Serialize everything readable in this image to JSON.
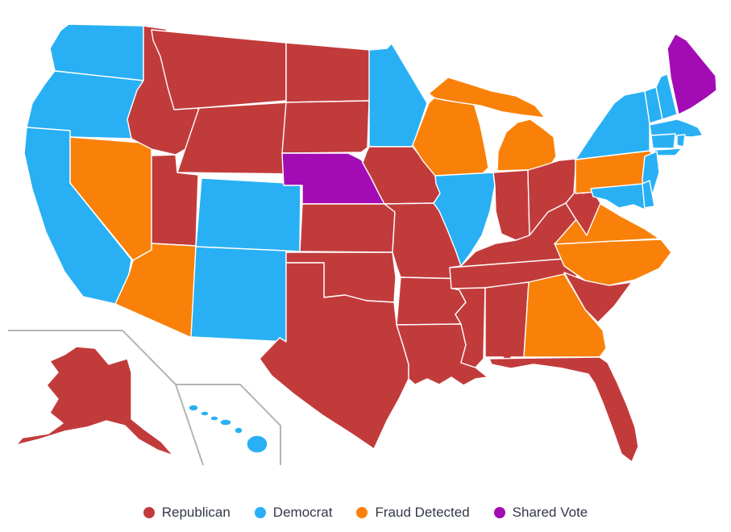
{
  "chart_data": {
    "type": "choropleth-map",
    "title": "",
    "legend_position": "bottom-center",
    "categories": [
      "Republican",
      "Democrat",
      "Fraud Detected",
      "Shared Vote"
    ],
    "category_colors": {
      "republican": "#c23b3b",
      "democrat": "#29b0f4",
      "fraud_detected": "#f98109",
      "shared_vote": "#a30cb5"
    },
    "states": [
      {
        "id": "WA",
        "name": "Washington",
        "status": "democrat"
      },
      {
        "id": "OR",
        "name": "Oregon",
        "status": "democrat"
      },
      {
        "id": "CA",
        "name": "California",
        "status": "democrat"
      },
      {
        "id": "NV",
        "name": "Nevada",
        "status": "fraud_detected"
      },
      {
        "id": "ID",
        "name": "Idaho",
        "status": "republican"
      },
      {
        "id": "MT",
        "name": "Montana",
        "status": "republican"
      },
      {
        "id": "WY",
        "name": "Wyoming",
        "status": "republican"
      },
      {
        "id": "UT",
        "name": "Utah",
        "status": "republican"
      },
      {
        "id": "CO",
        "name": "Colorado",
        "status": "democrat"
      },
      {
        "id": "AZ",
        "name": "Arizona",
        "status": "fraud_detected"
      },
      {
        "id": "NM",
        "name": "New Mexico",
        "status": "democrat"
      },
      {
        "id": "ND",
        "name": "North Dakota",
        "status": "republican"
      },
      {
        "id": "SD",
        "name": "South Dakota",
        "status": "republican"
      },
      {
        "id": "NE",
        "name": "Nebraska",
        "status": "shared_vote"
      },
      {
        "id": "KS",
        "name": "Kansas",
        "status": "republican"
      },
      {
        "id": "OK",
        "name": "Oklahoma",
        "status": "republican"
      },
      {
        "id": "TX",
        "name": "Texas",
        "status": "republican"
      },
      {
        "id": "MN",
        "name": "Minnesota",
        "status": "democrat"
      },
      {
        "id": "IA",
        "name": "Iowa",
        "status": "republican"
      },
      {
        "id": "MO",
        "name": "Missouri",
        "status": "republican"
      },
      {
        "id": "AR",
        "name": "Arkansas",
        "status": "republican"
      },
      {
        "id": "LA",
        "name": "Louisiana",
        "status": "republican"
      },
      {
        "id": "WI",
        "name": "Wisconsin",
        "status": "fraud_detected"
      },
      {
        "id": "IL",
        "name": "Illinois",
        "status": "democrat"
      },
      {
        "id": "MI",
        "name": "Michigan",
        "status": "fraud_detected"
      },
      {
        "id": "IN",
        "name": "Indiana",
        "status": "republican"
      },
      {
        "id": "OH",
        "name": "Ohio",
        "status": "republican"
      },
      {
        "id": "KY",
        "name": "Kentucky",
        "status": "republican"
      },
      {
        "id": "TN",
        "name": "Tennessee",
        "status": "republican"
      },
      {
        "id": "MS",
        "name": "Mississippi",
        "status": "republican"
      },
      {
        "id": "AL",
        "name": "Alabama",
        "status": "republican"
      },
      {
        "id": "GA",
        "name": "Georgia",
        "status": "fraud_detected"
      },
      {
        "id": "FL",
        "name": "Florida",
        "status": "republican"
      },
      {
        "id": "SC",
        "name": "South Carolina",
        "status": "republican"
      },
      {
        "id": "NC",
        "name": "North Carolina",
        "status": "fraud_detected"
      },
      {
        "id": "VA",
        "name": "Virginia",
        "status": "fraud_detected"
      },
      {
        "id": "WV",
        "name": "West Virginia",
        "status": "republican"
      },
      {
        "id": "PA",
        "name": "Pennsylvania",
        "status": "fraud_detected"
      },
      {
        "id": "NY",
        "name": "New York",
        "status": "democrat"
      },
      {
        "id": "NJ",
        "name": "New Jersey",
        "status": "democrat"
      },
      {
        "id": "DE",
        "name": "Delaware",
        "status": "democrat"
      },
      {
        "id": "MD",
        "name": "Maryland",
        "status": "democrat"
      },
      {
        "id": "VT",
        "name": "Vermont",
        "status": "democrat"
      },
      {
        "id": "NH",
        "name": "New Hampshire",
        "status": "democrat"
      },
      {
        "id": "ME",
        "name": "Maine",
        "status": "shared_vote"
      },
      {
        "id": "MA",
        "name": "Massachusetts",
        "status": "democrat"
      },
      {
        "id": "RI",
        "name": "Rhode Island",
        "status": "democrat"
      },
      {
        "id": "CT",
        "name": "Connecticut",
        "status": "democrat"
      },
      {
        "id": "AK",
        "name": "Alaska",
        "status": "republican"
      },
      {
        "id": "HI",
        "name": "Hawaii",
        "status": "democrat"
      }
    ]
  },
  "legend": {
    "items": [
      {
        "label": "Republican",
        "key": "republican"
      },
      {
        "label": "Democrat",
        "key": "democrat"
      },
      {
        "label": "Fraud Detected",
        "key": "fraud_detected"
      },
      {
        "label": "Shared Vote",
        "key": "shared_vote"
      }
    ]
  }
}
